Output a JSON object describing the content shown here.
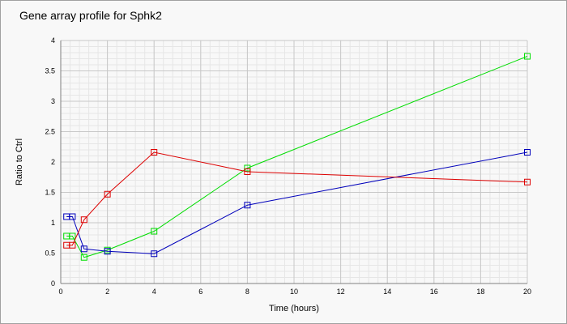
{
  "chart_data": {
    "type": "line",
    "title": "Gene array profile for Sphk2",
    "xlabel": "Time (hours)",
    "ylabel": "Ratio to Ctrl",
    "xlim": [
      0,
      20
    ],
    "ylim": [
      0,
      4
    ],
    "xticks": [
      0,
      2,
      4,
      6,
      8,
      10,
      12,
      14,
      16,
      18,
      20
    ],
    "yticks": [
      0,
      0.5,
      1,
      1.5,
      2,
      2.5,
      3,
      3.5,
      4
    ],
    "grid": true,
    "marker": "square",
    "series": [
      {
        "color": "#00dd00",
        "x": [
          0.25,
          0.5,
          1,
          2,
          4,
          8,
          20
        ],
        "y": [
          0.78,
          0.78,
          0.43,
          0.55,
          0.86,
          1.9,
          3.74
        ]
      },
      {
        "color": "#0000bb",
        "x": [
          0.25,
          0.5,
          1,
          2,
          4,
          8,
          20
        ],
        "y": [
          1.1,
          1.1,
          0.57,
          0.53,
          0.49,
          1.29,
          2.16
        ]
      },
      {
        "color": "#dd0000",
        "x": [
          0.25,
          0.5,
          1,
          2,
          4,
          8,
          20
        ],
        "y": [
          0.63,
          0.63,
          1.05,
          1.47,
          2.16,
          1.84,
          1.67
        ]
      }
    ]
  }
}
